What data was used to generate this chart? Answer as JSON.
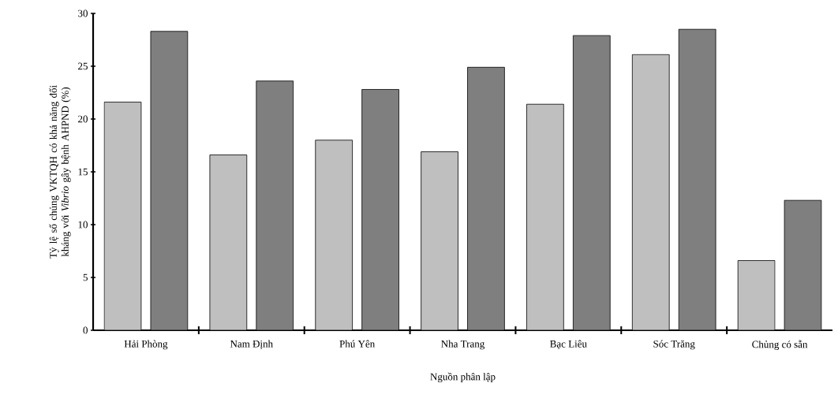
{
  "chart_data": {
    "type": "bar",
    "xlabel": "Nguồn phân lập",
    "ylabel": "Tỷ lệ số chủng VKTQH có khả năng đối kháng với *Vibrio* gây bệnh AHPND (%)",
    "categories": [
      "Hải Phòng",
      "Nam Định",
      "Phú Yên",
      "Nha Trang",
      "Bạc Liêu",
      "Sóc Trăng",
      "Chủng có sẵn"
    ],
    "series": [
      {
        "color": "#bfbfbf",
        "values": [
          21.6,
          16.6,
          18.0,
          16.9,
          21.4,
          26.1,
          6.6
        ]
      },
      {
        "color": "#7f7f7f",
        "values": [
          28.3,
          23.6,
          22.8,
          24.9,
          27.9,
          28.5,
          12.3
        ]
      }
    ],
    "ylim": [
      0,
      30
    ],
    "yticks": [
      0,
      5,
      10,
      15,
      20,
      25,
      30
    ],
    "grid": false
  }
}
